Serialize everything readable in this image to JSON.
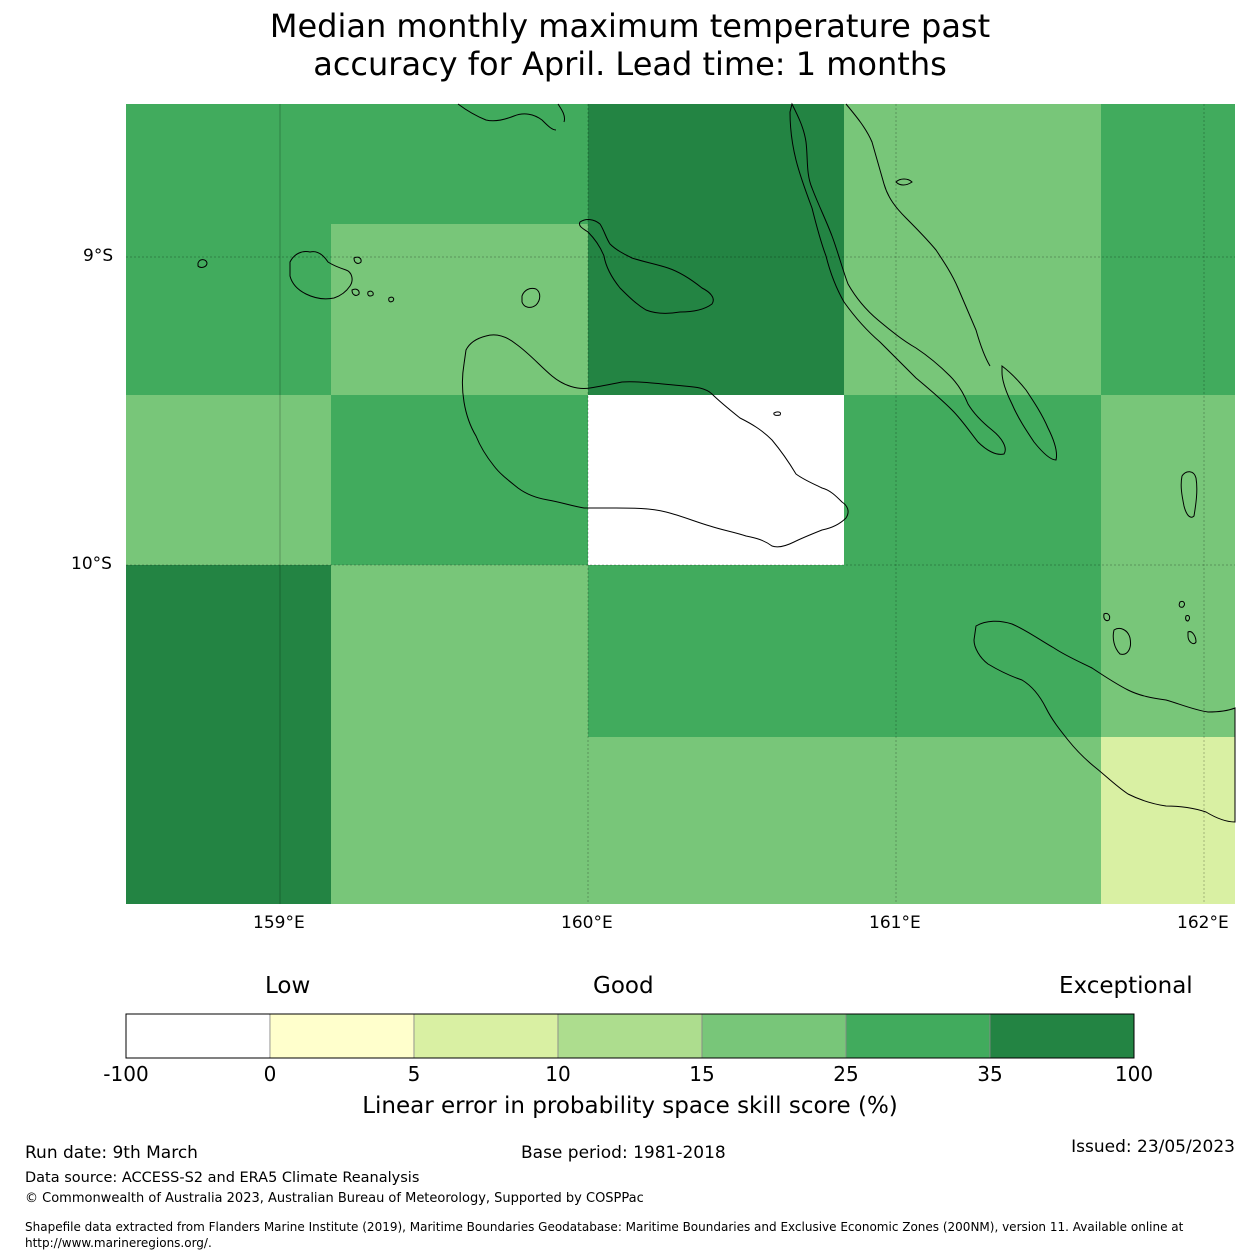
{
  "title": {
    "line1": "Median monthly maximum temperature past",
    "line2": "accuracy for April. Lead time: 1 months"
  },
  "axes": {
    "y_labels": [
      "9°S",
      "10°S"
    ],
    "x_labels": [
      "159°E",
      "160°E",
      "161°E",
      "162°E"
    ]
  },
  "colorbar": {
    "categories": {
      "low": "Low",
      "good": "Good",
      "exceptional": "Exceptional"
    },
    "ticks": [
      "-100",
      "0",
      "5",
      "10",
      "15",
      "25",
      "35",
      "100"
    ],
    "colors": [
      "#ffffff",
      "#ffffcc",
      "#d9f0a3",
      "#addd8e",
      "#78c679",
      "#41ab5d",
      "#238443"
    ],
    "label": "Linear error in probability space skill score (%)"
  },
  "grid_colors": {
    "white": "#ffffff",
    "light_yellow_green": "#d9f0a3",
    "light_green": "#78c679",
    "green": "#41ab5d",
    "dark_green": "#238443"
  },
  "footer": {
    "run_date": "Run date: 9th March",
    "base_period": "Base period: 1981-2018",
    "issued": "Issued: 23/05/2023",
    "data_source": "Data source: ACCESS-S2 and ERA5 Climate Reanalysis",
    "copyright": "© Commonwealth of Australia 2023, Australian Bureau of Meteorology, Supported by COSPPac",
    "shapefile_line1": "Shapefile data extracted from Flanders Marine Institute (2019), Maritime Boundaries Geodatabase: Maritime Boundaries and Exclusive Economic Zones (200NM), version 11. Available online at",
    "shapefile_line2": "http://www.marineregions.org/."
  }
}
